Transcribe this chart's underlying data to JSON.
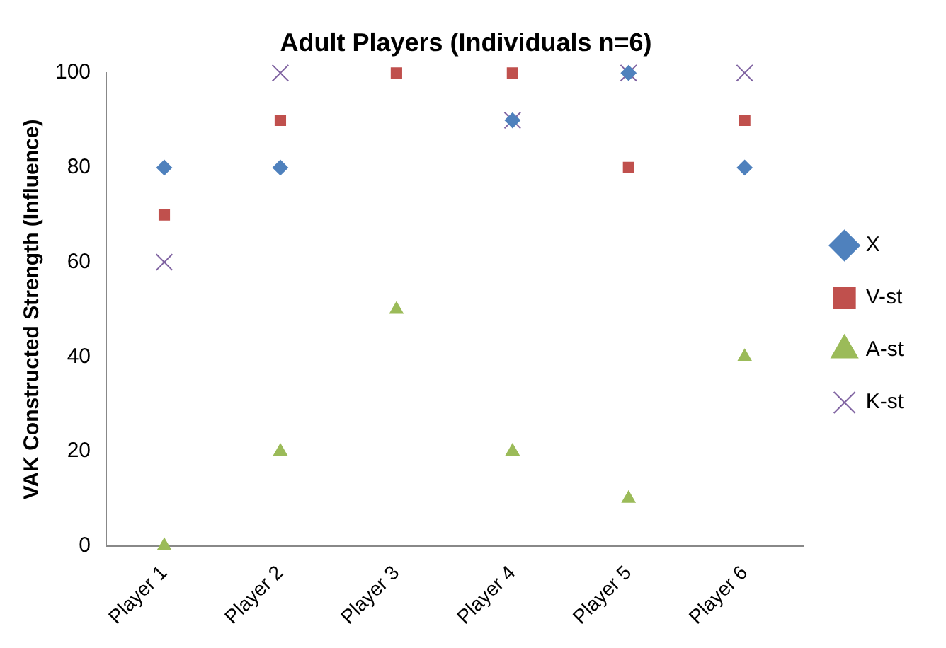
{
  "chart_data": {
    "type": "scatter",
    "title": "Adult Players (Individuals n=6)",
    "ylabel": "VAK Constructed Strength (Influence)",
    "categories": [
      "Player 1",
      "Player 2",
      "Player 3",
      "Player 4",
      "Player 5",
      "Player 6"
    ],
    "ylim": [
      0,
      100
    ],
    "yticks": [
      0,
      20,
      40,
      60,
      80,
      100
    ],
    "grid": false,
    "legend": "right",
    "series": [
      {
        "name": "X",
        "color": "#4f81bd",
        "marker": "diamond",
        "values": [
          80,
          80,
          null,
          90,
          100,
          80
        ]
      },
      {
        "name": "V-st",
        "color": "#c0504d",
        "marker": "square",
        "values": [
          70,
          90,
          100,
          100,
          80,
          90
        ]
      },
      {
        "name": "A-st",
        "color": "#9bbb59",
        "marker": "triangle",
        "values": [
          0,
          20,
          50,
          20,
          10,
          40
        ]
      },
      {
        "name": "K-st",
        "color": "#8064a2",
        "marker": "cross",
        "values": [
          60,
          100,
          null,
          90,
          100,
          100
        ]
      }
    ]
  }
}
